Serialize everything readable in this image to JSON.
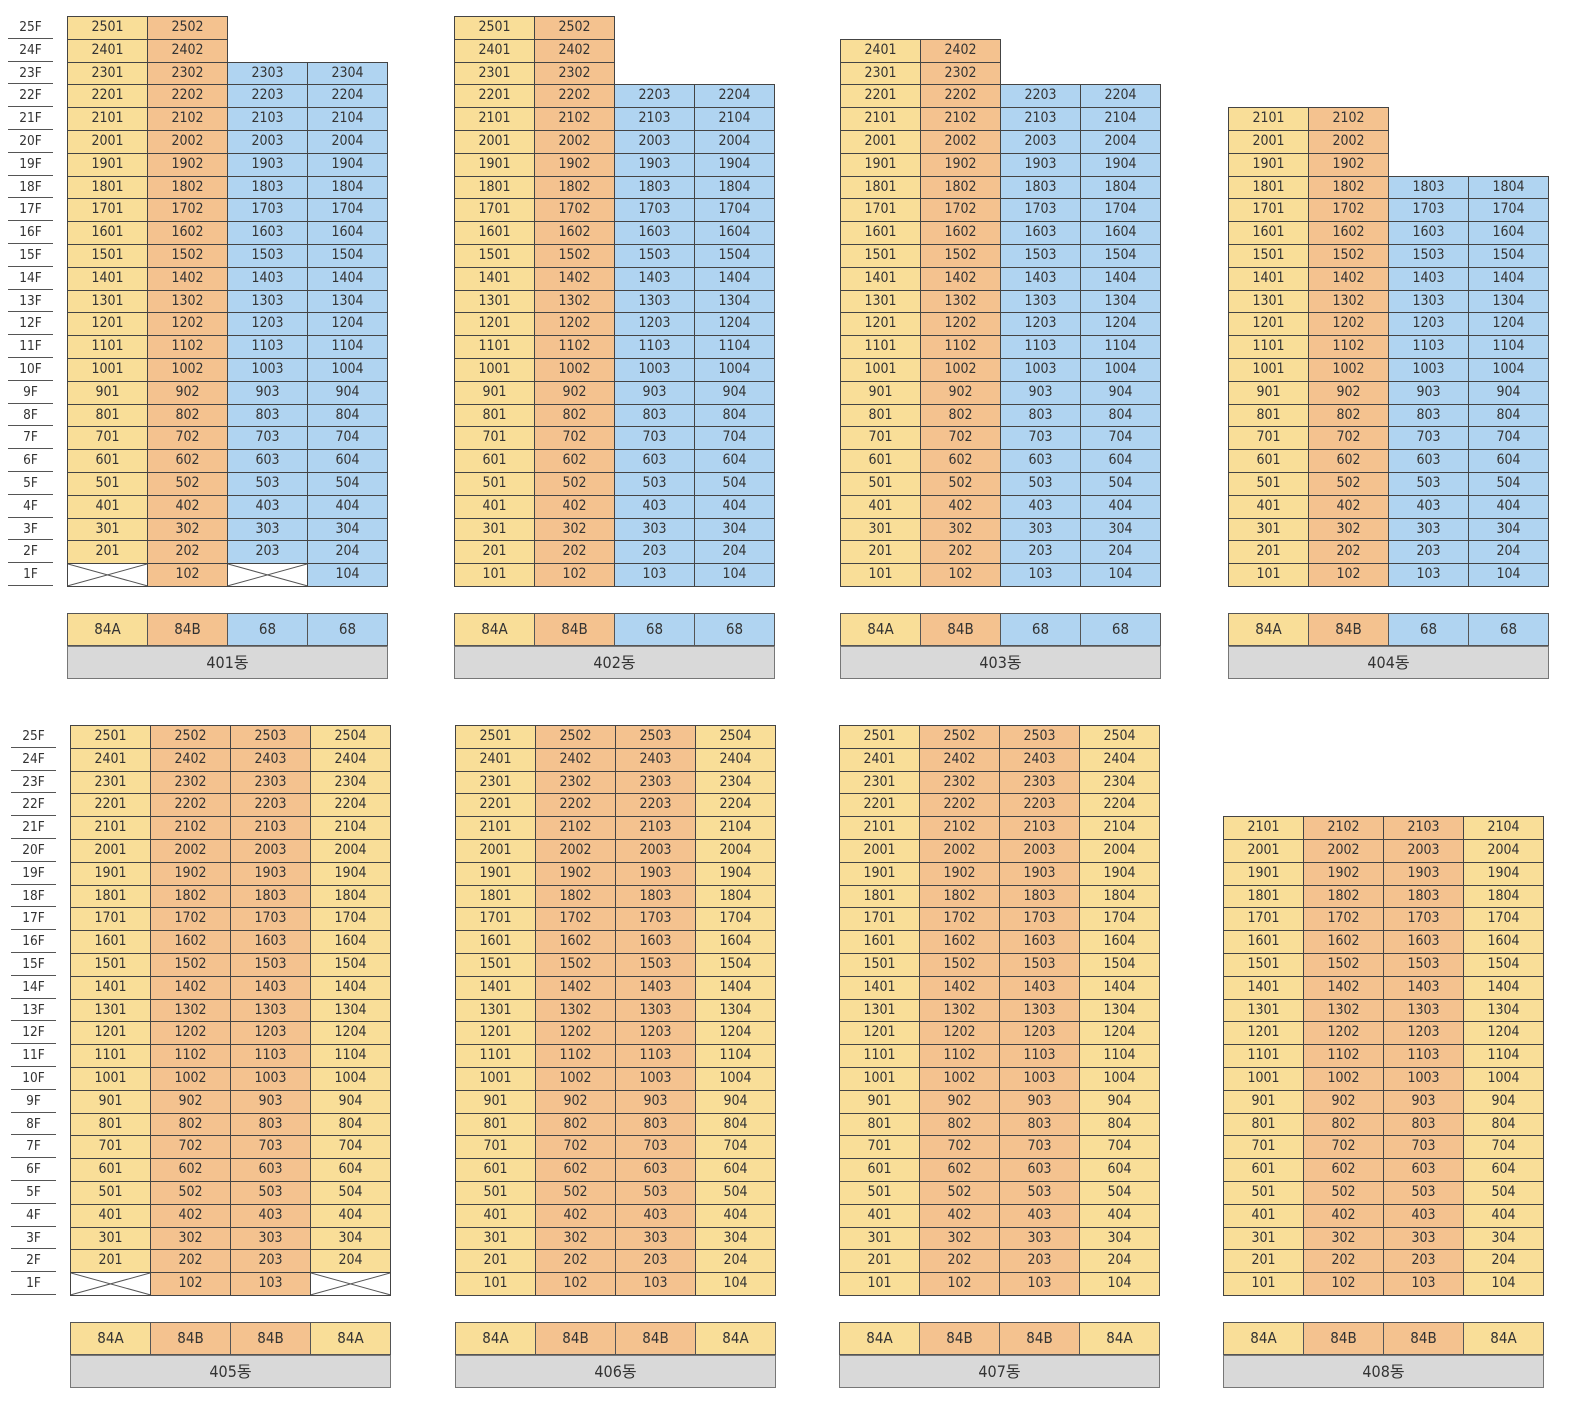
{
  "colors": {
    "type_84A": "#f9de98",
    "type_84B": "#f4c28f",
    "type_68": "#b0d4f1",
    "name_bar": "#d9d9d9"
  },
  "floors": [
    "25F",
    "24F",
    "23F",
    "22F",
    "21F",
    "20F",
    "19F",
    "18F",
    "17F",
    "16F",
    "15F",
    "14F",
    "13F",
    "12F",
    "11F",
    "10F",
    "9F",
    "8F",
    "7F",
    "6F",
    "5F",
    "4F",
    "3F",
    "2F",
    "1F"
  ],
  "buildings": [
    {
      "name": "401동",
      "types": [
        "84A",
        "84B",
        "68",
        "68"
      ],
      "lines": [
        {
          "top": 25,
          "empty": [
            1
          ]
        },
        {
          "top": 25,
          "empty": []
        },
        {
          "top": 23,
          "empty": [
            1
          ]
        },
        {
          "top": 23,
          "empty": []
        }
      ]
    },
    {
      "name": "402동",
      "types": [
        "84A",
        "84B",
        "68",
        "68"
      ],
      "lines": [
        {
          "top": 25,
          "empty": []
        },
        {
          "top": 25,
          "empty": []
        },
        {
          "top": 22,
          "empty": []
        },
        {
          "top": 22,
          "empty": []
        }
      ]
    },
    {
      "name": "403동",
      "types": [
        "84A",
        "84B",
        "68",
        "68"
      ],
      "lines": [
        {
          "top": 24,
          "empty": []
        },
        {
          "top": 24,
          "empty": []
        },
        {
          "top": 22,
          "empty": []
        },
        {
          "top": 22,
          "empty": []
        }
      ]
    },
    {
      "name": "404동",
      "types": [
        "84A",
        "84B",
        "68",
        "68"
      ],
      "lines": [
        {
          "top": 21,
          "empty": []
        },
        {
          "top": 21,
          "empty": []
        },
        {
          "top": 18,
          "empty": []
        },
        {
          "top": 18,
          "empty": []
        }
      ]
    },
    {
      "name": "405동",
      "types": [
        "84A",
        "84B",
        "84B",
        "84A"
      ],
      "lines": [
        {
          "top": 25,
          "empty": [
            1
          ]
        },
        {
          "top": 25,
          "empty": []
        },
        {
          "top": 25,
          "empty": []
        },
        {
          "top": 25,
          "empty": [
            1
          ]
        }
      ]
    },
    {
      "name": "406동",
      "types": [
        "84A",
        "84B",
        "84B",
        "84A"
      ],
      "lines": [
        {
          "top": 25,
          "empty": []
        },
        {
          "top": 25,
          "empty": []
        },
        {
          "top": 25,
          "empty": []
        },
        {
          "top": 25,
          "empty": []
        }
      ]
    },
    {
      "name": "407동",
      "types": [
        "84A",
        "84B",
        "84B",
        "84A"
      ],
      "lines": [
        {
          "top": 25,
          "empty": []
        },
        {
          "top": 25,
          "empty": []
        },
        {
          "top": 25,
          "empty": []
        },
        {
          "top": 25,
          "empty": []
        }
      ]
    },
    {
      "name": "408동",
      "types": [
        "84A",
        "84B",
        "84B",
        "84A"
      ],
      "lines": [
        {
          "top": 21,
          "empty": []
        },
        {
          "top": 21,
          "empty": []
        },
        {
          "top": 21,
          "empty": []
        },
        {
          "top": 21,
          "empty": []
        }
      ]
    }
  ]
}
